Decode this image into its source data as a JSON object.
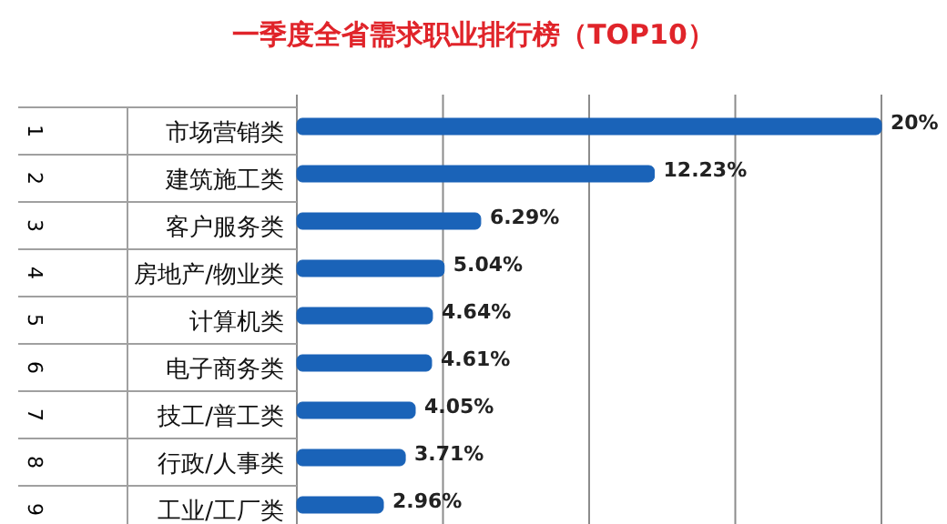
{
  "chart_data": {
    "type": "bar",
    "orientation": "horizontal",
    "title": "一季度全省需求职业排行榜（TOP10）",
    "categories": [
      "市场营销类",
      "建筑施工类",
      "客户服务类",
      "房地产/物业类",
      "计算机类",
      "电子商务类",
      "技工/普工类",
      "行政/人事类",
      "工业/工厂类"
    ],
    "values": [
      20,
      12.23,
      6.29,
      5.04,
      4.64,
      4.61,
      4.05,
      3.71,
      2.96
    ],
    "value_labels": [
      "20%",
      "12.23%",
      "6.29%",
      "5.04%",
      "4.64%",
      "4.61%",
      "4.05%",
      "3.71%",
      "2.96%"
    ],
    "color": "#1a63b8",
    "xlim": [
      0,
      20
    ],
    "xticks": [
      {
        "value": 0,
        "label": null
      },
      {
        "value": 5,
        "label": null
      },
      {
        "value": 10,
        "label": null
      },
      {
        "value": 15,
        "label": null
      },
      {
        "value": 20,
        "label": null
      }
    ],
    "grid": "x",
    "annotations": [
      "1",
      "2",
      "3",
      "4",
      "5",
      "6",
      "7",
      "8",
      "9"
    ]
  }
}
